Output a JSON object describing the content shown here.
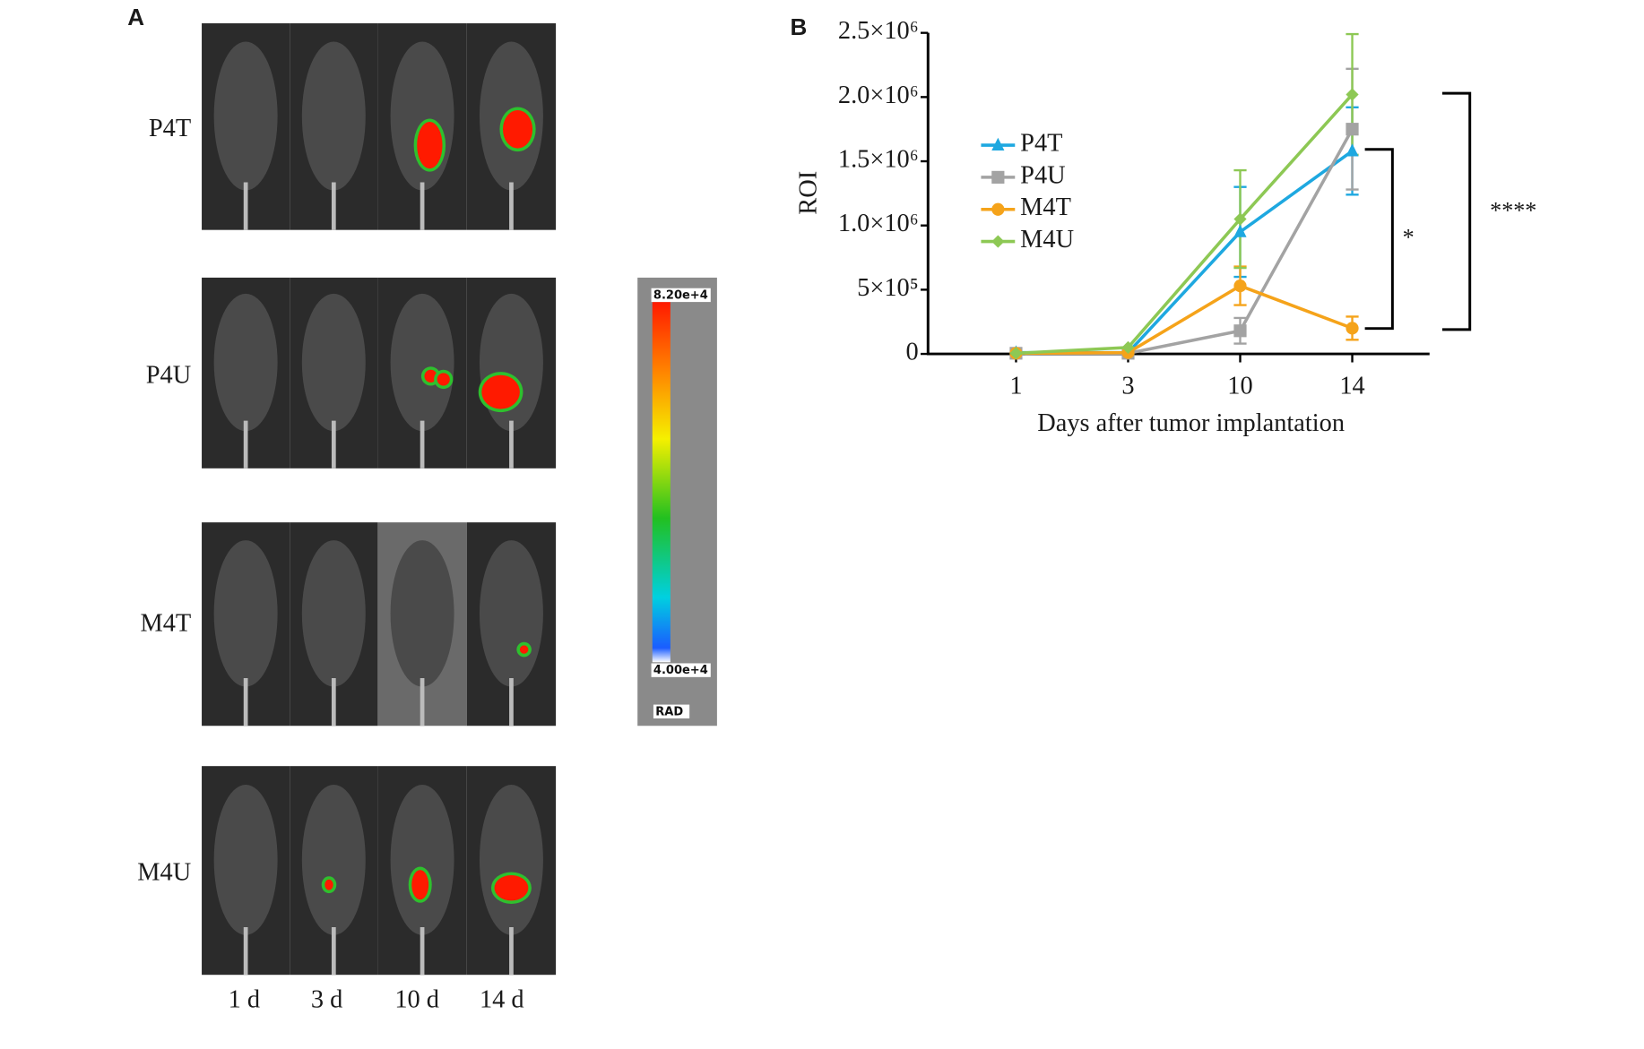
{
  "panel_a": {
    "label": "A",
    "rows": [
      "P4T",
      "P4U",
      "M4T",
      "M4U"
    ],
    "columns": [
      "1 d",
      "3 d",
      "10 d",
      "14 d"
    ],
    "colorbar": {
      "max_label": "8.20e+4",
      "min_label": "4.00e+4",
      "unit": "RAD"
    }
  },
  "chart_data": {
    "type": "line",
    "panel_label": "B",
    "x_label": "Days after tumor implantation",
    "y_label": "ROI",
    "categories": [
      "1",
      "3",
      "10",
      "14"
    ],
    "ylim": [
      0,
      2500000
    ],
    "yticks": [
      0,
      {
        "value": 500000,
        "label": "5×10⁵"
      },
      {
        "value": 1000000,
        "label": "1.0×10⁶"
      },
      {
        "value": 1500000,
        "label": "1.5×10⁶"
      },
      {
        "value": 2000000,
        "label": "2.0×10⁶"
      },
      {
        "value": 2500000,
        "label": "2.5×10⁶"
      }
    ],
    "legend": "upper left",
    "series": [
      {
        "name": "P4T",
        "color": "#1ea8e0",
        "marker": "triangle",
        "values": [
          10000,
          10000,
          950000,
          1580000
        ],
        "errors": [
          null,
          null,
          350000,
          340000
        ]
      },
      {
        "name": "P4U",
        "color": "#a3a3a3",
        "marker": "square",
        "values": [
          5000,
          5000,
          180000,
          1750000
        ],
        "errors": [
          null,
          null,
          100000,
          470000
        ]
      },
      {
        "name": "M4T",
        "color": "#f5a31a",
        "marker": "circle",
        "values": [
          5000,
          10000,
          530000,
          200000
        ],
        "errors": [
          null,
          null,
          150000,
          90000
        ]
      },
      {
        "name": "M4U",
        "color": "#8dc854",
        "marker": "diamond",
        "values": [
          5000,
          50000,
          1050000,
          2020000
        ],
        "errors": [
          null,
          null,
          380000,
          470000
        ]
      }
    ],
    "annotations": [
      "*",
      "****"
    ]
  }
}
